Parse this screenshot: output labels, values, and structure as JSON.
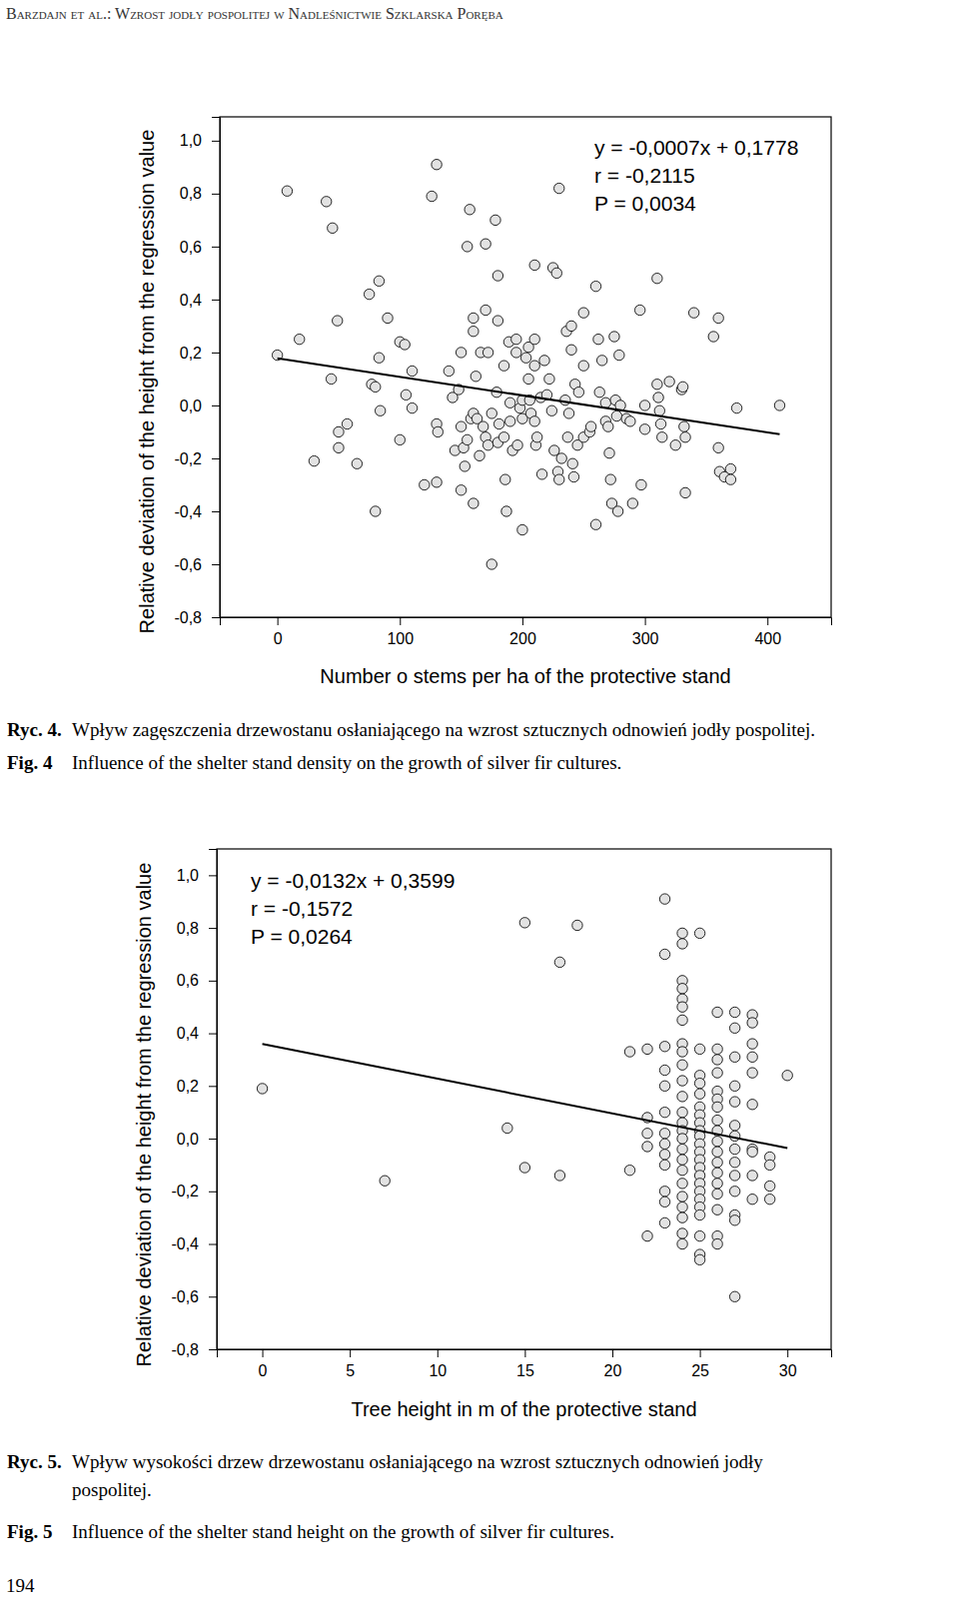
{
  "header": "Barzdajn et al.: Wzrost jodły pospolitej w Nadleśnictwie Szklarska Poręba",
  "chart_data": [
    {
      "type": "scatter",
      "x_label": "Number o stems per ha of the protective stand",
      "y_label": "Relative deviation of the height from the regression value",
      "annotations": [
        "y = -0,0007x + 0,1778",
        "r = -0,2115",
        "P = 0,0034"
      ],
      "color": "#e2e2e2",
      "xlim": [
        -47,
        452
      ],
      "ylim": [
        -0.8,
        1.09
      ],
      "xticks": [
        0,
        100,
        200,
        300,
        400
      ],
      "yticks": [
        {
          "value": -0.8,
          "label": "-0,8"
        },
        {
          "value": -0.6,
          "label": "-0,6"
        },
        {
          "value": -0.4,
          "label": "-0,4"
        },
        {
          "value": -0.2,
          "label": "-0,2"
        },
        {
          "value": 0,
          "label": "0,0"
        },
        {
          "value": 0.2,
          "label": "0,2"
        },
        {
          "value": 0.4,
          "label": "0,4"
        },
        {
          "value": 0.6,
          "label": "0,6"
        },
        {
          "value": 0.8,
          "label": "0,8"
        },
        {
          "value": 1.0,
          "label": "1,0"
        }
      ],
      "fit": {
        "x": [
          0,
          410
        ],
        "values": [
          0.1778,
          -0.109
        ]
      },
      "x": [
        0,
        8,
        18,
        30,
        40,
        44,
        45,
        49,
        50,
        50,
        57,
        65,
        75,
        77,
        80,
        80,
        83,
        83,
        84,
        90,
        100,
        100,
        104,
        105,
        110,
        110,
        120,
        126,
        130,
        130,
        130,
        131,
        140,
        143,
        145,
        148,
        150,
        150,
        150,
        152,
        153,
        155,
        155,
        157,
        158,
        160,
        160,
        160,
        160,
        162,
        163,
        165,
        166,
        168,
        170,
        170,
        170,
        172,
        172,
        175,
        175,
        178,
        179,
        180,
        180,
        180,
        181,
        185,
        185,
        186,
        187,
        189,
        190,
        190,
        192,
        195,
        195,
        196,
        198,
        200,
        200,
        200,
        203,
        205,
        205,
        206,
        207,
        210,
        210,
        210,
        210,
        211,
        212,
        215,
        216,
        218,
        220,
        222,
        224,
        225,
        226,
        228,
        229,
        230,
        230,
        232,
        235,
        236,
        237,
        238,
        240,
        240,
        241,
        242,
        243,
        245,
        246,
        250,
        250,
        250,
        255,
        256,
        260,
        260,
        262,
        263,
        265,
        268,
        268,
        270,
        271,
        272,
        273,
        275,
        276,
        277,
        278,
        279,
        280,
        285,
        290,
        288,
        296,
        297,
        300,
        300,
        310,
        310,
        311,
        312,
        313,
        314,
        320,
        325,
        330,
        331,
        332,
        333,
        333,
        340,
        356,
        360,
        360,
        361,
        365,
        370,
        370,
        375,
        410
      ],
      "values": [
        0.19,
        0.81,
        0.25,
        -0.21,
        0.77,
        0.1,
        0.67,
        0.32,
        -0.1,
        -0.16,
        -0.07,
        -0.22,
        0.42,
        0.08,
        0.07,
        -0.4,
        0.47,
        0.18,
        -0.02,
        0.33,
        -0.13,
        0.24,
        0.23,
        0.04,
        0.13,
        -0.01,
        -0.3,
        0.79,
        0.91,
        -0.07,
        -0.29,
        -0.1,
        0.13,
        0.03,
        -0.17,
        0.06,
        -0.08,
        0.2,
        -0.32,
        -0.16,
        -0.23,
        -0.13,
        0.6,
        0.74,
        -0.05,
        0.33,
        0.28,
        -0.03,
        -0.37,
        0.11,
        -0.05,
        -0.19,
        0.2,
        -0.08,
        0.61,
        0.36,
        -0.12,
        -0.15,
        0.2,
        -0.6,
        -0.03,
        0.7,
        0.05,
        0.32,
        0.49,
        -0.14,
        -0.07,
        0.15,
        -0.12,
        -0.28,
        -0.4,
        0.24,
        0.01,
        -0.06,
        -0.17,
        0.2,
        0.25,
        -0.15,
        -0.01,
        0.02,
        -0.47,
        -0.05,
        0.18,
        0.1,
        0.22,
        0.02,
        -0.03,
        0.15,
        -0.06,
        0.25,
        0.53,
        -0.15,
        -0.12,
        0.03,
        -0.26,
        0.17,
        0.04,
        0.1,
        -0.02,
        0.52,
        -0.17,
        0.5,
        -0.25,
        -0.28,
        0.82,
        -0.2,
        0.02,
        0.28,
        -0.12,
        -0.03,
        0.3,
        0.21,
        -0.22,
        -0.27,
        0.08,
        -0.15,
        0.05,
        0.35,
        0.15,
        -0.12,
        -0.1,
        -0.08,
        0.45,
        -0.45,
        0.25,
        0.05,
        0.17,
        0.01,
        -0.06,
        -0.08,
        -0.18,
        -0.28,
        -0.37,
        0.26,
        0.02,
        -0.04,
        -0.4,
        0.19,
        0.0,
        -0.05,
        -0.37,
        -0.06,
        0.36,
        -0.3,
        -0.09,
        0.0,
        0.48,
        0.08,
        0.03,
        -0.02,
        -0.07,
        -0.12,
        0.09,
        -0.15,
        0.06,
        0.07,
        -0.08,
        -0.12,
        -0.33,
        0.35,
        0.26,
        0.33,
        -0.16,
        -0.25,
        -0.27,
        -0.24,
        -0.28,
        -0.01,
        0.0
      ]
    },
    {
      "type": "scatter",
      "x_label": "Tree height in m of the protective stand",
      "y_label": "Relative deviation of the height from the regression value",
      "annotations": [
        "y = -0,0132x + 0,3599",
        "r = -0,1572",
        "P = 0,0264"
      ],
      "color": "#e2e2e2",
      "xlim": [
        -2.6,
        32.5
      ],
      "ylim": [
        -0.8,
        1.1
      ],
      "xticks": [
        0,
        5,
        10,
        15,
        20,
        25,
        30
      ],
      "yticks": [
        {
          "value": -0.8,
          "label": "-0,8"
        },
        {
          "value": -0.6,
          "label": "-0,6"
        },
        {
          "value": -0.4,
          "label": "-0,4"
        },
        {
          "value": -0.2,
          "label": "-0,2"
        },
        {
          "value": 0,
          "label": "0,0"
        },
        {
          "value": 0.2,
          "label": "0,2"
        },
        {
          "value": 0.4,
          "label": "0,4"
        },
        {
          "value": 0.6,
          "label": "0,6"
        },
        {
          "value": 0.8,
          "label": "0,8"
        },
        {
          "value": 1.0,
          "label": "1,0"
        }
      ],
      "fit": {
        "x": [
          0,
          30
        ],
        "values": [
          0.3599,
          -0.036
        ]
      },
      "x": [
        0,
        7,
        14,
        15,
        15,
        17,
        17,
        18,
        21,
        21,
        22,
        22,
        22,
        22,
        22,
        23,
        23,
        23,
        23,
        23,
        23,
        23,
        23,
        23,
        23,
        23,
        23,
        23,
        24,
        24,
        24,
        24,
        24,
        24,
        24,
        24,
        24,
        24,
        24,
        24,
        24,
        24,
        24,
        24,
        24,
        24,
        24,
        24,
        24,
        24,
        24,
        24,
        24,
        25,
        25,
        25,
        25,
        25,
        25,
        25,
        25,
        25,
        25,
        25,
        25,
        25,
        25,
        25,
        25,
        25,
        25,
        25,
        25,
        25,
        25,
        25,
        26,
        26,
        26,
        26,
        26,
        26,
        26,
        26,
        26,
        26,
        26,
        26,
        26,
        26,
        26,
        26,
        26,
        26,
        27,
        27,
        27,
        27,
        27,
        27,
        27,
        27,
        27,
        27,
        27,
        27,
        27,
        27,
        28,
        28,
        28,
        28,
        28,
        28,
        28,
        28,
        28,
        28,
        29,
        29,
        29,
        29,
        30
      ],
      "values": [
        0.19,
        -0.16,
        0.04,
        0.82,
        -0.11,
        0.67,
        -0.14,
        0.81,
        0.33,
        -0.12,
        0.34,
        0.08,
        0.02,
        -0.03,
        -0.37,
        0.91,
        0.7,
        0.35,
        0.26,
        0.2,
        0.1,
        0.02,
        -0.02,
        -0.06,
        -0.1,
        -0.2,
        -0.24,
        -0.32,
        0.78,
        0.74,
        0.6,
        0.57,
        0.53,
        0.5,
        0.45,
        0.36,
        0.33,
        0.28,
        0.22,
        0.16,
        0.1,
        0.06,
        0.03,
        0.0,
        -0.04,
        -0.08,
        -0.12,
        -0.17,
        -0.22,
        -0.26,
        -0.3,
        -0.36,
        -0.4,
        0.78,
        0.34,
        0.24,
        0.21,
        0.17,
        0.12,
        0.09,
        0.06,
        0.03,
        0.01,
        -0.02,
        -0.05,
        -0.08,
        -0.11,
        -0.14,
        -0.17,
        -0.2,
        -0.23,
        -0.26,
        -0.29,
        -0.37,
        -0.44,
        -0.46,
        0.48,
        0.34,
        0.3,
        0.25,
        0.18,
        0.15,
        0.12,
        0.07,
        0.03,
        -0.01,
        -0.05,
        -0.09,
        -0.13,
        -0.17,
        -0.21,
        -0.27,
        -0.37,
        -0.4,
        0.48,
        0.42,
        0.31,
        0.2,
        0.14,
        0.05,
        0.01,
        -0.04,
        -0.09,
        -0.14,
        -0.2,
        -0.29,
        -0.31,
        -0.6,
        0.47,
        0.44,
        0.36,
        0.31,
        0.25,
        0.13,
        -0.04,
        -0.05,
        -0.14,
        -0.23,
        -0.07,
        -0.1,
        -0.18,
        -0.23,
        0.24
      ]
    }
  ],
  "captions": [
    {
      "label": "Ryc. 4.",
      "lines": [
        "Wpływ zagęszczenia drzewostanu osłaniającego na wzrost sztucznych odnowień jodły pospolitej."
      ]
    },
    {
      "label": "Fig. 4",
      "lines": [
        "Influence of the shelter stand density on the growth of silver fir cultures."
      ]
    },
    {
      "label": "Ryc. 5.",
      "lines": [
        "Wpływ wysokości drzew drzewostanu osłaniającego na wzrost sztucznych odnowień jodły",
        "pospolitej."
      ]
    },
    {
      "label": "Fig. 5",
      "lines": [
        "Influence of the shelter stand height on the growth of silver fir cultures."
      ]
    }
  ],
  "page_number": "194"
}
